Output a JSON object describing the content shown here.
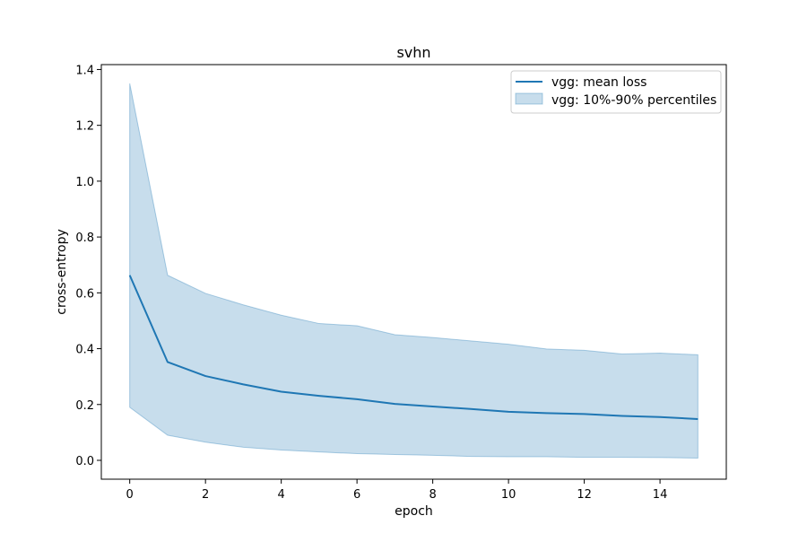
{
  "chart_data": {
    "type": "line",
    "title": "svhn",
    "xlabel": "epoch",
    "ylabel": "cross-entropy",
    "xlim": [
      -0.75,
      15.75
    ],
    "ylim": [
      -0.0675,
      1.4175
    ],
    "xticks": [
      0,
      2,
      4,
      6,
      8,
      10,
      12,
      14
    ],
    "yticks": [
      0.0,
      0.2,
      0.4,
      0.6,
      0.8,
      1.0,
      1.2,
      1.4
    ],
    "xtick_labels": [
      "0",
      "2",
      "4",
      "6",
      "8",
      "10",
      "12",
      "14"
    ],
    "ytick_labels": [
      "0.0",
      "0.2",
      "0.4",
      "0.6",
      "0.8",
      "1.0",
      "1.2",
      "1.4"
    ],
    "grid": false,
    "legend_position": "top-right",
    "x": [
      0,
      1,
      2,
      3,
      4,
      5,
      6,
      7,
      8,
      9,
      10,
      11,
      12,
      13,
      14,
      15
    ],
    "series": [
      {
        "name": "vgg: mean loss",
        "kind": "line",
        "color": "#1f77b4",
        "values": [
          0.663,
          0.352,
          0.302,
          0.272,
          0.246,
          0.231,
          0.219,
          0.202,
          0.193,
          0.184,
          0.174,
          0.169,
          0.166,
          0.159,
          0.155,
          0.148
        ]
      },
      {
        "name": "vgg: 10%-90% percentiles",
        "kind": "band",
        "color": "#1f77b4",
        "opacity": 0.25,
        "lower": [
          0.19,
          0.09,
          0.065,
          0.047,
          0.037,
          0.03,
          0.024,
          0.021,
          0.018,
          0.014,
          0.013,
          0.013,
          0.011,
          0.011,
          0.01,
          0.008
        ],
        "upper": [
          1.35,
          0.663,
          0.598,
          0.557,
          0.52,
          0.49,
          0.482,
          0.45,
          0.44,
          0.428,
          0.416,
          0.399,
          0.394,
          0.381,
          0.384,
          0.378
        ]
      }
    ]
  }
}
